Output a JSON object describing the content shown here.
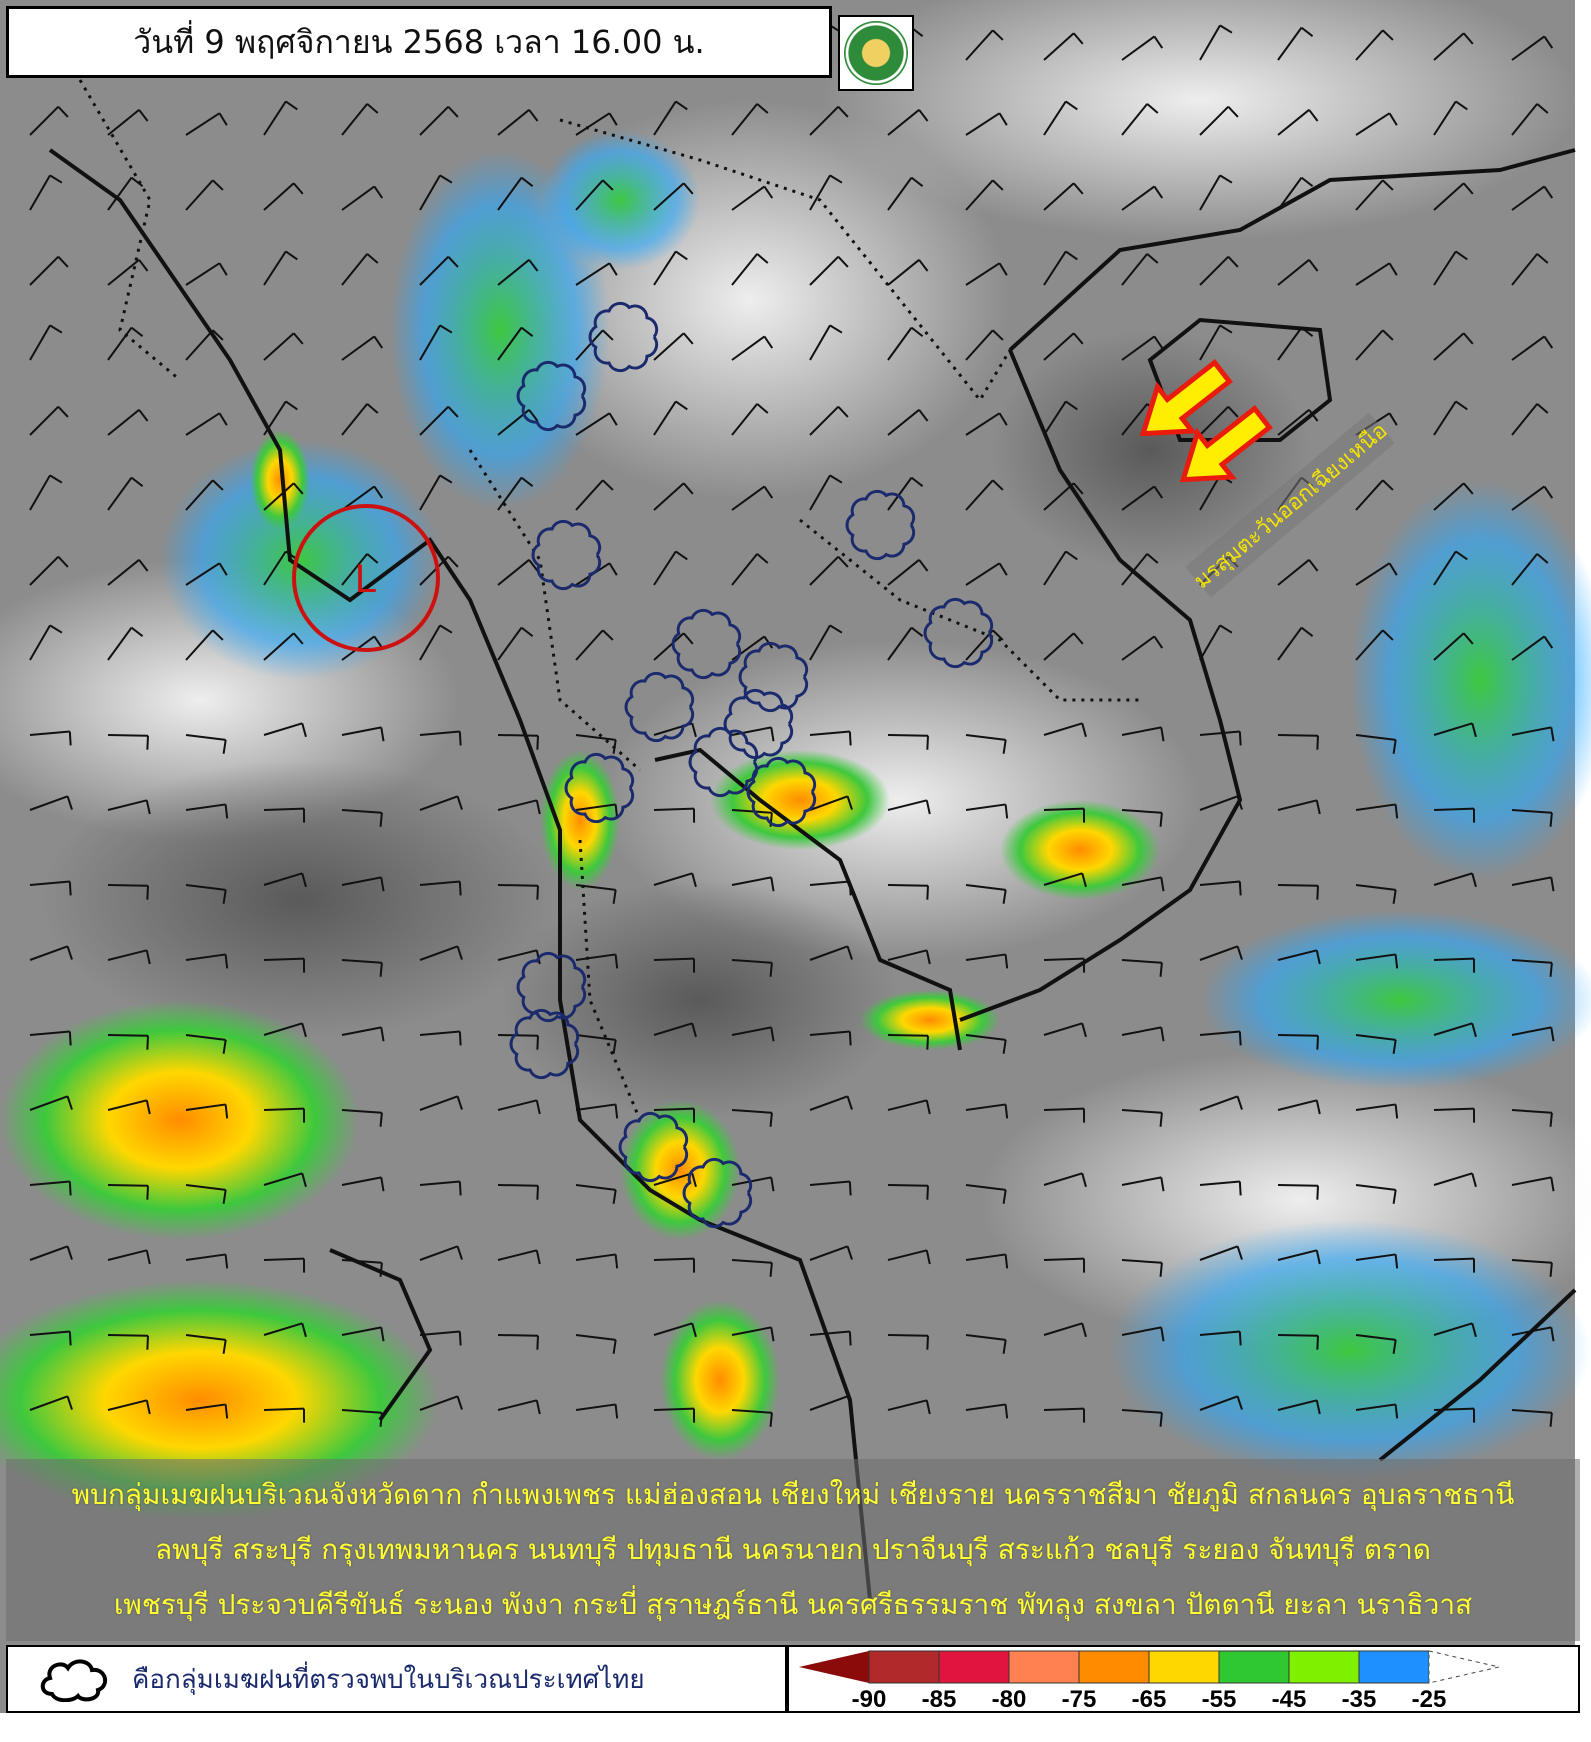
{
  "header": {
    "title": "วันที่ 9 พฤศจิกายน 2568 เวลา 16.00 น.",
    "logo": "กรมอุตุนิยมวิทยา"
  },
  "map": {
    "low_pressure_label": "L",
    "monsoon_label": "มรสุมตะวันออกเฉียงเหนือ",
    "arrow_color": "#ffee00",
    "arrow_outline": "#e81b0c",
    "circle_color": "#cc1111",
    "cloud_outline_color": "#1a2a6c"
  },
  "notice": {
    "lines": [
      "พบกลุ่มเมฆฝนบริเวณจังหวัดตาก กำแพงเพชร แม่ฮ่องสอน เชียงใหม่ เชียงราย นครราชสีมา ชัยภูมิ สกลนคร อุบลราชธานี",
      "ลพบุรี สระบุรี กรุงเทพมหานคร นนทบุรี ปทุมธานี นครนายก ปราจีนบุรี สระแก้ว ชลบุรี ระยอง จันทบุรี ตราด",
      "เพชรบุรี ประจวบคีรีขันธ์ ระนอง พังงา กระบี่ สุราษฎร์ธานี นครศรีธรรมราช พัทลุง สงขลา ปัตตานี ยะลา นราธิวาส"
    ]
  },
  "legend": {
    "cloud_caption": "คือกลุ่มเมฆฝนที่ตรวจพบในบริเวณประเทศไทย",
    "scale_colors": [
      "#8b0a0a",
      "#b02a2a",
      "#e0143c",
      "#ff8050",
      "#ff8c00",
      "#ffd700",
      "#30c830",
      "#7ff000",
      "#1e90ff"
    ],
    "scale_labels": [
      "-90",
      "-85",
      "-80",
      "-75",
      "-65",
      "-55",
      "-45",
      "-35",
      "-25"
    ]
  }
}
